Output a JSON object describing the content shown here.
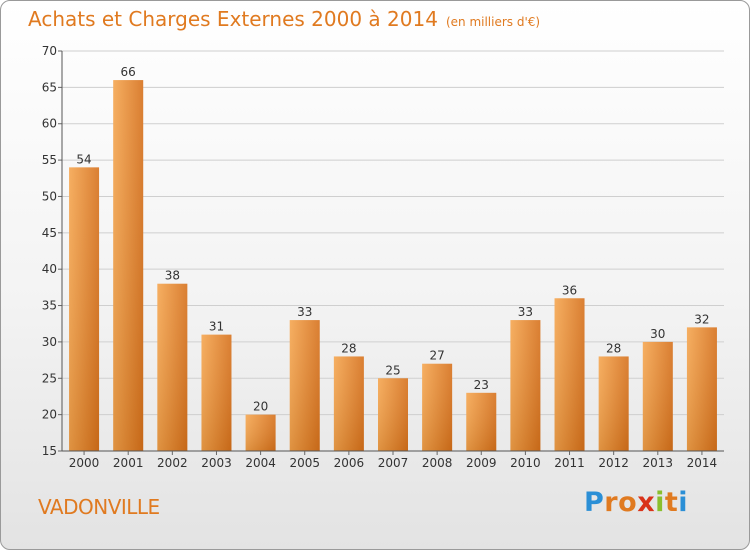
{
  "chart_data": {
    "type": "bar",
    "title": "Achats et Charges Externes 2000 à 2014",
    "subtitle": "(en milliers d'€)",
    "categories": [
      "2000",
      "2001",
      "2002",
      "2003",
      "2004",
      "2005",
      "2006",
      "2007",
      "2008",
      "2009",
      "2010",
      "2011",
      "2012",
      "2013",
      "2014"
    ],
    "values": [
      54,
      66,
      38,
      31,
      20,
      33,
      28,
      25,
      27,
      23,
      33,
      36,
      28,
      30,
      32
    ],
    "ylim": [
      15,
      70
    ],
    "yticks": [
      15,
      20,
      25,
      30,
      35,
      40,
      45,
      50,
      55,
      60,
      65,
      70
    ],
    "grid": true,
    "bar_color_light": "#f5a650",
    "bar_color_dark": "#d6711c"
  },
  "footer": {
    "commune": "VADONVILLE",
    "brand_letters": [
      "P",
      "r",
      "o",
      "x",
      "i",
      "t",
      "i"
    ],
    "brand_colors": [
      "#2b8fd6",
      "#e07a20",
      "#e07a20",
      "#d9331a",
      "#8abf2e",
      "#e07a20",
      "#2b8fd6"
    ]
  }
}
